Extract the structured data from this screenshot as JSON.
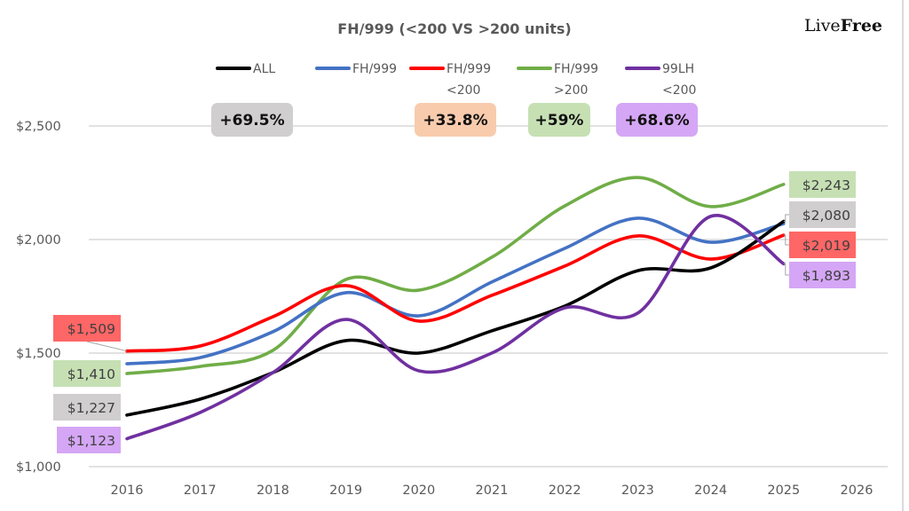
{
  "brand": {
    "light": "Live",
    "bold": "Free"
  },
  "chart_data": {
    "type": "line",
    "title": "FH/999 (<200 VS >200 units)",
    "xlabel": "",
    "ylabel": "",
    "x": [
      "2016",
      "2017",
      "2018",
      "2019",
      "2020",
      "2021",
      "2022",
      "2023",
      "2024",
      "2025",
      "2026"
    ],
    "xlim": [
      "2016",
      "2026"
    ],
    "ylim": [
      1000,
      2500
    ],
    "yticks": [
      1000,
      1500,
      2000,
      2500
    ],
    "ytick_labels": [
      "$1,000",
      "$1,500",
      "$2,000",
      "$2,500"
    ],
    "grid": "horizontal",
    "smoothed": true,
    "legend_position": "top",
    "series": [
      {
        "name": "ALL",
        "legend_lines": [
          "ALL"
        ],
        "color": "#000000",
        "values": [
          1227,
          1297,
          1414,
          1555,
          1500,
          1598,
          1707,
          1863,
          1875,
          2080
        ]
      },
      {
        "name": "FH/999",
        "legend_lines": [
          "FH/999"
        ],
        "color": "#4472c4",
        "values": [
          1453,
          1480,
          1594,
          1766,
          1664,
          1813,
          1961,
          2094,
          1988,
          2070
        ]
      },
      {
        "name": "FH/999 <200",
        "legend_lines": [
          "FH/999",
          "<200"
        ],
        "color": "#ff0000",
        "values": [
          1509,
          1531,
          1660,
          1797,
          1641,
          1754,
          1883,
          2016,
          1914,
          2019
        ]
      },
      {
        "name": "FH/999 >200",
        "legend_lines": [
          "FH/999",
          ">200"
        ],
        "color": "#70ad47",
        "values": [
          1410,
          1441,
          1512,
          1824,
          1777,
          1922,
          2148,
          2273,
          2145,
          2243
        ]
      },
      {
        "name": "99LH <200",
        "legend_lines": [
          "99LH",
          "<200"
        ],
        "color": "#7030a0",
        "values": [
          1123,
          1238,
          1414,
          1648,
          1422,
          1500,
          1699,
          1676,
          2102,
          1893
        ]
      }
    ],
    "data_labels": [
      {
        "series": "FH/999 <200",
        "x": "2016",
        "text": "$1,509",
        "bg": "#ff6666"
      },
      {
        "series": "FH/999 >200",
        "x": "2016",
        "text": "$1,410",
        "bg": "#c6e0b4"
      },
      {
        "series": "ALL",
        "x": "2016",
        "text": "$1,227",
        "bg": "#d0cece"
      },
      {
        "series": "99LH <200",
        "x": "2016",
        "text": "$1,123",
        "bg": "#d5a6f5"
      },
      {
        "series": "FH/999 >200",
        "x": "2025",
        "text": "$2,243",
        "bg": "#c6e0b4"
      },
      {
        "series": "ALL",
        "x": "2025",
        "text": "$2,080",
        "bg": "#d0cece"
      },
      {
        "series": "FH/999 <200",
        "x": "2025",
        "text": "$2,019",
        "bg": "#ff6666"
      },
      {
        "series": "99LH <200",
        "x": "2025",
        "text": "$1,893",
        "bg": "#d5a6f5"
      }
    ],
    "annotations": [
      {
        "text": "+69.5%",
        "series": "ALL",
        "bg": "#d0cece"
      },
      {
        "text": "+33.8%",
        "series": "FH/999 <200",
        "bg": "#f8cbad"
      },
      {
        "text": "+59%",
        "series": "FH/999 >200",
        "bg": "#c6e0b4"
      },
      {
        "text": "+68.6%",
        "series": "99LH <200",
        "bg": "#d5a6f5"
      }
    ]
  }
}
